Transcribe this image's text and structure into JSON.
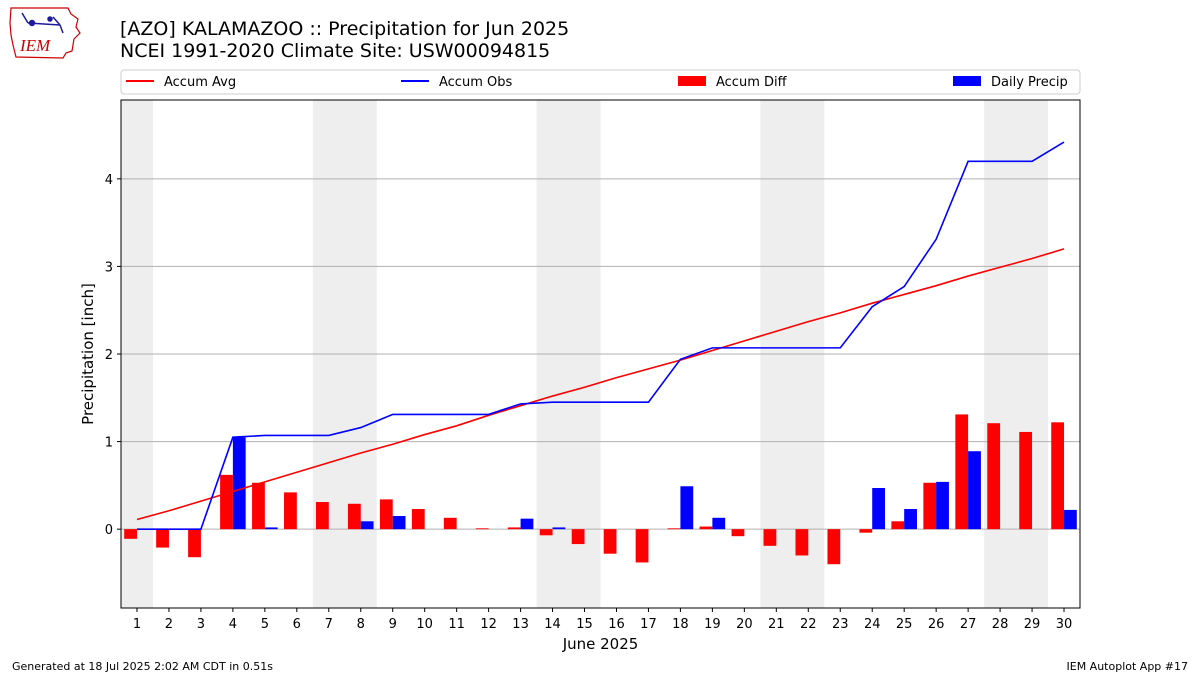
{
  "title_line1": "[AZO] KALAMAZOO :: Precipitation for Jun 2025",
  "title_line2": "NCEI 1991-2020 Climate Site: USW00094815",
  "logo_text": "IEM",
  "footer_left": "Generated at 18 Jul 2025 2:02 AM CDT in 0.51s",
  "footer_right": "IEM Autoplot App #17",
  "colors": {
    "avg": "#ff0000",
    "obs": "#0000ff",
    "diff": "#ff0000",
    "daily": "#0000ff",
    "weekend": "#eeeeee",
    "grid": "#b0b0b0"
  },
  "chart_data": {
    "type": "bar",
    "xlabel": "June 2025",
    "ylabel": "Precipitation [inch]",
    "xlim": [
      0.5,
      30.5
    ],
    "ylim": [
      -0.9,
      4.9
    ],
    "yticks": [
      0,
      1,
      2,
      3,
      4
    ],
    "grid": true,
    "legend_position": "top",
    "weekend_shading": [
      [
        0.5,
        1.5
      ],
      [
        6.5,
        8.5
      ],
      [
        13.5,
        15.5
      ],
      [
        20.5,
        22.5
      ],
      [
        27.5,
        29.5
      ]
    ],
    "x": [
      1,
      2,
      3,
      4,
      5,
      6,
      7,
      8,
      9,
      10,
      11,
      12,
      13,
      14,
      15,
      16,
      17,
      18,
      19,
      20,
      21,
      22,
      23,
      24,
      25,
      26,
      27,
      28,
      29,
      30
    ],
    "series": [
      {
        "name": "Accum Avg",
        "kind": "line",
        "values": [
          0.11,
          0.21,
          0.32,
          0.43,
          0.54,
          0.65,
          0.76,
          0.87,
          0.97,
          1.08,
          1.18,
          1.3,
          1.41,
          1.52,
          1.62,
          1.73,
          1.83,
          1.93,
          2.04,
          2.15,
          2.26,
          2.37,
          2.47,
          2.58,
          2.68,
          2.78,
          2.89,
          2.99,
          3.09,
          3.2
        ]
      },
      {
        "name": "Accum Obs",
        "kind": "line",
        "values": [
          0.0,
          0.0,
          0.0,
          1.05,
          1.07,
          1.07,
          1.07,
          1.16,
          1.31,
          1.31,
          1.31,
          1.31,
          1.43,
          1.45,
          1.45,
          1.45,
          1.45,
          1.94,
          2.07,
          2.07,
          2.07,
          2.07,
          2.07,
          2.54,
          2.77,
          3.31,
          4.2,
          4.2,
          4.2,
          4.42
        ]
      },
      {
        "name": "Accum Diff",
        "kind": "bar",
        "values": [
          -0.11,
          -0.21,
          -0.32,
          0.62,
          0.53,
          0.42,
          0.31,
          0.29,
          0.34,
          0.23,
          0.13,
          0.01,
          0.02,
          -0.07,
          -0.17,
          -0.28,
          -0.38,
          0.01,
          0.03,
          -0.08,
          -0.19,
          -0.3,
          -0.4,
          -0.04,
          0.09,
          0.53,
          1.31,
          1.21,
          1.11,
          1.22
        ]
      },
      {
        "name": "Daily Precip",
        "kind": "bar",
        "values": [
          0,
          0,
          0,
          1.05,
          0.02,
          0,
          0,
          0.09,
          0.15,
          0,
          0,
          0,
          0.12,
          0.02,
          0,
          0,
          0,
          0.49,
          0.13,
          0,
          0,
          0,
          0,
          0.47,
          0.23,
          0.54,
          0.89,
          0,
          0,
          0.22
        ]
      }
    ]
  }
}
